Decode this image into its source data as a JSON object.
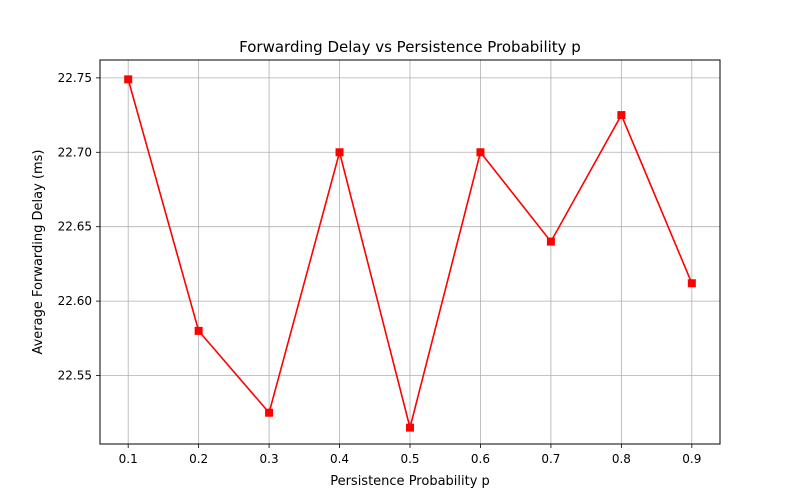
{
  "chart_data": {
    "type": "line",
    "title": "Forwarding Delay vs Persistence Probability p",
    "xlabel": "Persistence Probability p",
    "ylabel": "Average Forwarding Delay (ms)",
    "x": [
      0.1,
      0.2,
      0.3,
      0.4,
      0.5,
      0.6,
      0.7,
      0.8,
      0.9
    ],
    "x_tick_labels": [
      "0.1",
      "0.2",
      "0.3",
      "0.4",
      "0.5",
      "0.6",
      "0.7",
      "0.8",
      "0.9"
    ],
    "y_ticks": [
      22.55,
      22.6,
      22.65,
      22.7,
      22.75
    ],
    "y_tick_labels": [
      "22.55",
      "22.60",
      "22.65",
      "22.70",
      "22.75"
    ],
    "xlim": [
      0.06,
      0.94
    ],
    "ylim": [
      22.504,
      22.762
    ],
    "grid": true,
    "series": [
      {
        "values": [
          22.749,
          22.58,
          22.525,
          22.7,
          22.515,
          22.7,
          22.64,
          22.725,
          22.612
        ],
        "color": "#ff0000",
        "marker": "square"
      }
    ]
  }
}
